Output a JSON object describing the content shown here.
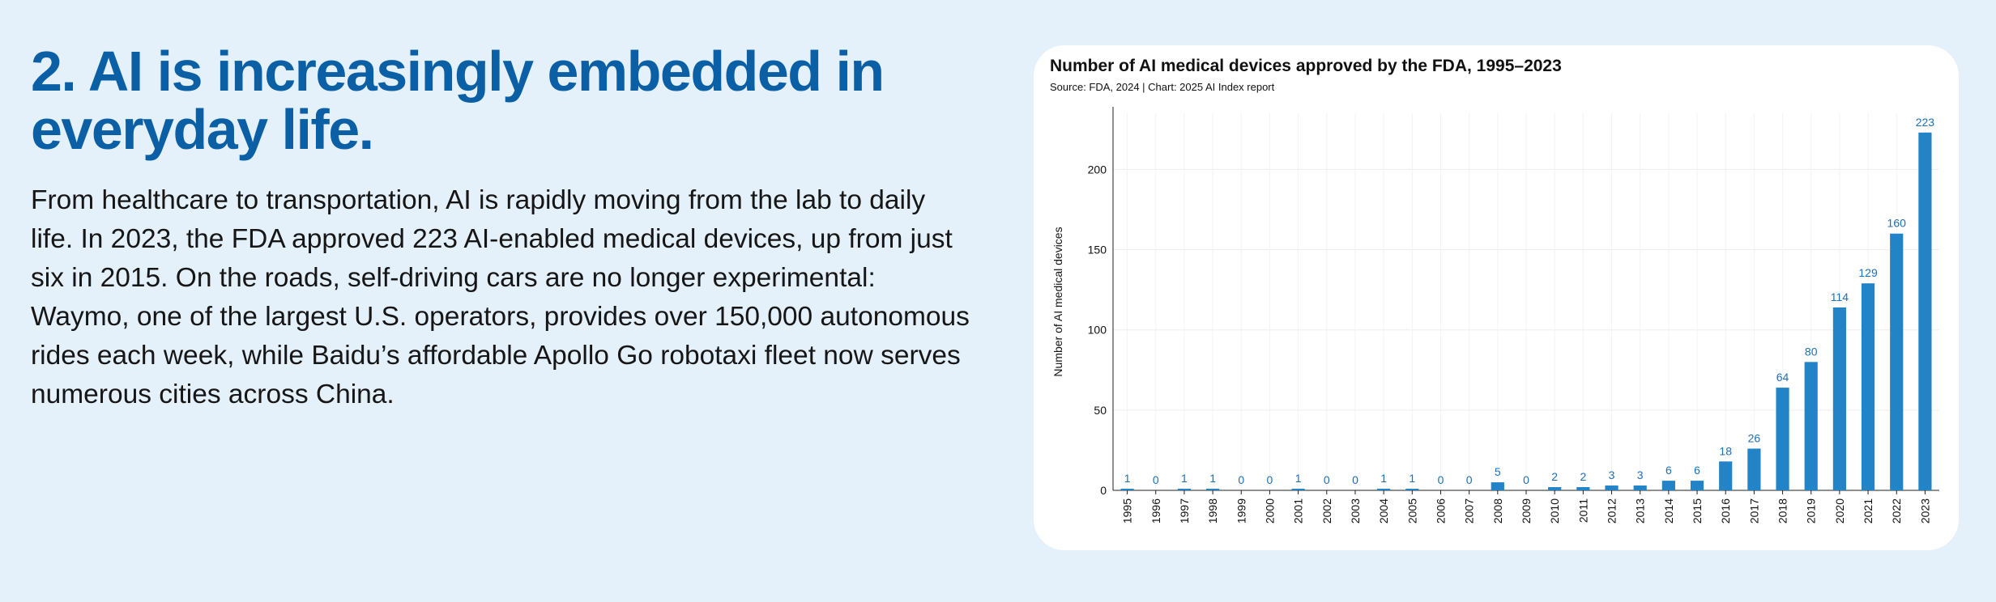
{
  "left_panel": {
    "heading": "2. AI is increasingly embedded in everyday life.",
    "body": "From healthcare to transportation, AI is rapidly moving from the lab to daily life. In 2023, the FDA approved 223 AI-enabled medical devices, up from just six in 2015. On the roads, self-driving cars are no longer experimental: Waymo, one of the largest U.S. operators, provides over 150,000 autonomous rides each week, while Baidu’s affordable Apollo Go robotaxi fleet now serves numerous cities across China."
  },
  "colors": {
    "background": "#e4f0fa",
    "heading": "#0b5fa5",
    "bar": "#2283c6",
    "data_label": "#1f6fb5",
    "card": "#ffffff"
  },
  "chart_data": {
    "type": "bar",
    "title": "Number of AI medical devices approved by the FDA, 1995–2023",
    "source": "Source: FDA, 2024 | Chart: 2025 AI Index report",
    "xlabel": "",
    "ylabel": "Number of AI medical devices",
    "ylim": [
      0,
      235
    ],
    "yticks": [
      0,
      50,
      100,
      150,
      200
    ],
    "grid": true,
    "categories": [
      "1995",
      "1996",
      "1997",
      "1998",
      "1999",
      "2000",
      "2001",
      "2002",
      "2003",
      "2004",
      "2005",
      "2006",
      "2007",
      "2008",
      "2009",
      "2010",
      "2011",
      "2012",
      "2013",
      "2014",
      "2015",
      "2016",
      "2017",
      "2018",
      "2019",
      "2020",
      "2021",
      "2022",
      "2023"
    ],
    "values": [
      1,
      0,
      1,
      1,
      0,
      0,
      1,
      0,
      0,
      1,
      1,
      0,
      0,
      5,
      0,
      2,
      2,
      3,
      3,
      6,
      6,
      18,
      26,
      64,
      80,
      114,
      129,
      160,
      223
    ]
  }
}
